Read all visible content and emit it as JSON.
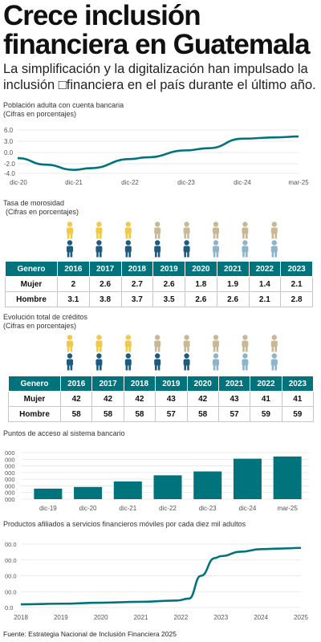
{
  "title": "Crece inclusión financiera en Guatemala",
  "subtitle": "La simplificación y la digitalización han impulsado la inclusión □financiera en el país durante el último año.",
  "source": "Fuente: Estrategia Nacional de Inclusión Financiera 2025",
  "colors": {
    "teal": "#00737c",
    "gold": "#f2c84b",
    "beige": "#c9b896",
    "lightblue": "#8fb3c9",
    "darkblue": "#1e5b80"
  },
  "chart_data": [
    {
      "type": "line",
      "title": "Población adulta con cuenta bancaria",
      "subtitle": "(Cifras en porcentajes)",
      "x": [
        "dic-20",
        "dic-21",
        "dic-22",
        "dic-23",
        "dic-24",
        "mar-25"
      ],
      "yticks": [
        "6.0",
        "3.0",
        "0.0",
        "-2.0",
        "-4.0"
      ],
      "ylim": [
        -4,
        6
      ],
      "series": [
        {
          "x": [
            0,
            0.5,
            1,
            1.3,
            2,
            2.3,
            3,
            3.4,
            4,
            4.6,
            5
          ],
          "values": [
            -0.5,
            -2.0,
            -3.2,
            -2.8,
            -0.7,
            -0.3,
            1.3,
            1.8,
            4.0,
            4.3,
            4.5
          ]
        }
      ]
    },
    {
      "type": "table",
      "title": "Tasa de morosidad",
      "subtitle": "(Cifras en porcentajes)",
      "header": [
        "Genero",
        "2016",
        "2017",
        "2018",
        "2019",
        "2020",
        "2021",
        "2022",
        "2023"
      ],
      "rows": [
        [
          "Mujer",
          "2",
          "2.6",
          "2.7",
          "2.6",
          "1.8",
          "1.9",
          "1.4",
          "2.1"
        ],
        [
          "Hombre",
          "3.1",
          "3.8",
          "3.7",
          "3.5",
          "2.6",
          "2.6",
          "2.1",
          "2.8"
        ]
      ]
    },
    {
      "type": "table",
      "title": "Evolución total de créditos",
      "subtitle": "(Cifras en porcentajes)",
      "header": [
        "Genero",
        "2016",
        "2017",
        "2018",
        "2019",
        "2020",
        "2021",
        "2022",
        "2023"
      ],
      "rows": [
        [
          "Mujer",
          "42",
          "42",
          "42",
          "43",
          "42",
          "43",
          "41",
          "41"
        ],
        [
          "Hombre",
          "58",
          "58",
          "58",
          "57",
          "58",
          "57",
          "59",
          "59"
        ]
      ]
    },
    {
      "type": "bar",
      "title": "Puntos de acceso al sistema bancario",
      "categories": [
        "dic-19",
        "dic-20",
        "dic-21",
        "dic-22",
        "dic-23",
        "dic-24",
        "mar-25"
      ],
      "values": [
        9.5,
        11,
        16,
        21.5,
        25,
        36.5,
        38.5
      ],
      "yticks": [
        "000",
        "000",
        "000",
        "000",
        "000",
        "000",
        "000",
        "000"
      ],
      "ylim": [
        0,
        42
      ]
    },
    {
      "type": "line",
      "title": "Productos afiliados a servicios financieros móviles por cada diez mil adultos",
      "x": [
        "2018",
        "2019",
        "2020",
        "2021",
        "2022",
        "2023",
        "2024",
        "2025"
      ],
      "yticks": [
        "00.0",
        "00.0",
        "00.0",
        "00.0",
        "0.0"
      ],
      "ylim": [
        0,
        100
      ],
      "series": [
        {
          "x": [
            0,
            1,
            2,
            3,
            3.9,
            4.2,
            4.5,
            4.85,
            5,
            5.5,
            6,
            6.5,
            7
          ],
          "values": [
            5,
            6,
            7.5,
            9,
            11,
            14,
            50,
            78,
            81,
            88,
            92,
            93,
            94
          ]
        }
      ]
    }
  ],
  "pictogram": {
    "cols": 8,
    "top_colors": [
      "gold",
      "gold",
      "gold",
      "beige",
      "beige",
      "beige",
      "beige",
      "beige"
    ],
    "bottom_colors": [
      "darkblue",
      "darkblue",
      "darkblue",
      "darkblue",
      "darkblue",
      "lightblue",
      "lightblue",
      "lightblue"
    ]
  }
}
